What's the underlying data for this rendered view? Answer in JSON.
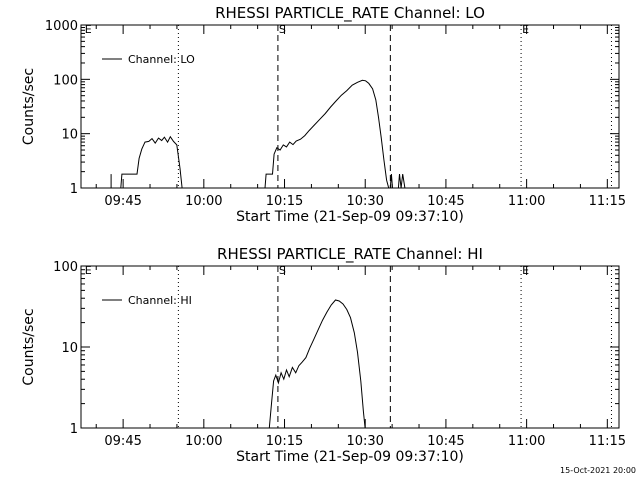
{
  "footer": {
    "timestamp": "15-Oct-2021 20:00"
  },
  "chart_data": [
    {
      "type": "line",
      "title": "RHESSI PARTICLE_RATE Channel: LO",
      "xlabel": "Start Time (21-Sep-09 09:37:10)",
      "ylabel": "Counts/sec",
      "x_unit": "minutes after 09:37:10",
      "xlim": [
        0,
        100
      ],
      "ylim": [
        1,
        1000
      ],
      "yscale": "log",
      "x_ticks": [
        {
          "x": 7.83,
          "label": "09:45"
        },
        {
          "x": 22.83,
          "label": "10:00"
        },
        {
          "x": 37.83,
          "label": "10:15"
        },
        {
          "x": 52.83,
          "label": "10:30"
        },
        {
          "x": 67.83,
          "label": "10:45"
        },
        {
          "x": 82.83,
          "label": "11:00"
        },
        {
          "x": 97.83,
          "label": "11:15"
        }
      ],
      "y_ticks": [
        {
          "y": 1,
          "label": "1"
        },
        {
          "y": 10,
          "label": "10"
        },
        {
          "y": 100,
          "label": "100"
        },
        {
          "y": 1000,
          "label": "1000"
        }
      ],
      "legend": {
        "position": "top-left",
        "label": "Channel: LO"
      },
      "markers": [
        {
          "x": 18.1,
          "style": "dotted",
          "label": ""
        },
        {
          "x": 36.6,
          "style": "dashed",
          "label": "S"
        },
        {
          "x": 57.5,
          "style": "dashed",
          "label": ""
        },
        {
          "x": 81.8,
          "style": "dotted",
          "label": "E"
        },
        {
          "x": 98.6,
          "style": "dotted",
          "label": ""
        }
      ],
      "corner_marks": [
        {
          "x": 0.5,
          "label": "E"
        }
      ],
      "series": [
        {
          "segments": [
            [
              [
                5.6,
                1
              ],
              [
                5.6,
                1.8
              ]
            ],
            [
              [
                7.4,
                1
              ],
              [
                7.6,
                1.8
              ],
              [
                10.4,
                1.8
              ],
              [
                10.8,
                3.5
              ],
              [
                11.3,
                5.2
              ],
              [
                11.9,
                7.0
              ],
              [
                12.6,
                7.2
              ],
              [
                13.2,
                8.1
              ],
              [
                13.8,
                6.7
              ],
              [
                14.4,
                8.3
              ],
              [
                15.0,
                7.5
              ],
              [
                15.5,
                8.6
              ],
              [
                16.1,
                7.0
              ],
              [
                16.6,
                8.8
              ],
              [
                17.2,
                7.2
              ],
              [
                17.8,
                6.2
              ],
              [
                18.4,
                2.3
              ],
              [
                18.8,
                1
              ]
            ],
            [
              [
                34.2,
                1
              ],
              [
                34.4,
                1.8
              ],
              [
                35.6,
                1.8
              ],
              [
                35.9,
                4.2
              ],
              [
                36.4,
                5.5
              ],
              [
                37.0,
                5.0
              ],
              [
                37.6,
                6.2
              ],
              [
                38.2,
                5.7
              ],
              [
                38.8,
                7.0
              ],
              [
                39.4,
                6.3
              ],
              [
                40.0,
                7.3
              ],
              [
                40.8,
                7.9
              ],
              [
                41.6,
                9.2
              ],
              [
                42.4,
                11.4
              ],
              [
                43.4,
                14.5
              ],
              [
                44.4,
                18.5
              ],
              [
                45.4,
                23.5
              ],
              [
                46.4,
                31
              ],
              [
                47.4,
                40
              ],
              [
                48.4,
                51
              ],
              [
                49.4,
                62
              ],
              [
                50.4,
                78
              ],
              [
                51.4,
                88
              ],
              [
                52.3,
                96
              ],
              [
                52.9,
                94
              ],
              [
                53.5,
                84
              ],
              [
                54.2,
                67
              ],
              [
                54.8,
                42
              ],
              [
                55.3,
                20
              ],
              [
                55.8,
                8.5
              ],
              [
                56.3,
                3.3
              ],
              [
                56.8,
                1.4
              ],
              [
                57.2,
                1
              ]
            ],
            [
              [
                57.5,
                1
              ],
              [
                57.7,
                1.8
              ],
              [
                57.9,
                1
              ]
            ],
            [
              [
                59.0,
                1
              ],
              [
                59.2,
                1.8
              ],
              [
                59.5,
                1
              ],
              [
                59.8,
                1.8
              ],
              [
                60.2,
                1
              ]
            ]
          ]
        }
      ]
    },
    {
      "type": "line",
      "title": "RHESSI PARTICLE_RATE Channel: HI",
      "xlabel": "Start Time (21-Sep-09 09:37:10)",
      "ylabel": "Counts/sec",
      "x_unit": "minutes after 09:37:10",
      "xlim": [
        0,
        100
      ],
      "ylim": [
        1,
        100
      ],
      "yscale": "log",
      "x_ticks": [
        {
          "x": 7.83,
          "label": "09:45"
        },
        {
          "x": 22.83,
          "label": "10:00"
        },
        {
          "x": 37.83,
          "label": "10:15"
        },
        {
          "x": 52.83,
          "label": "10:30"
        },
        {
          "x": 67.83,
          "label": "10:45"
        },
        {
          "x": 82.83,
          "label": "11:00"
        },
        {
          "x": 97.83,
          "label": "11:15"
        }
      ],
      "y_ticks": [
        {
          "y": 1,
          "label": "1"
        },
        {
          "y": 10,
          "label": "10"
        },
        {
          "y": 100,
          "label": "100"
        }
      ],
      "legend": {
        "position": "top-left",
        "label": "Channel: HI"
      },
      "markers": [
        {
          "x": 18.1,
          "style": "dotted",
          "label": ""
        },
        {
          "x": 36.6,
          "style": "dashed",
          "label": "S"
        },
        {
          "x": 57.5,
          "style": "dashed",
          "label": ""
        },
        {
          "x": 81.8,
          "style": "dotted",
          "label": "E"
        },
        {
          "x": 98.6,
          "style": "dotted",
          "label": ""
        }
      ],
      "corner_marks": [
        {
          "x": 0.5,
          "label": "E"
        }
      ],
      "series": [
        {
          "segments": [
            [
              [
                35.0,
                1
              ],
              [
                35.4,
                2.0
              ],
              [
                35.8,
                3.8
              ],
              [
                36.2,
                4.5
              ],
              [
                36.7,
                3.6
              ],
              [
                37.2,
                4.8
              ],
              [
                37.7,
                4.0
              ],
              [
                38.2,
                5.2
              ],
              [
                38.7,
                4.3
              ],
              [
                39.3,
                5.6
              ],
              [
                39.9,
                4.8
              ],
              [
                40.5,
                5.9
              ],
              [
                41.1,
                6.5
              ],
              [
                41.8,
                7.4
              ],
              [
                42.5,
                9.6
              ],
              [
                43.3,
                12.6
              ],
              [
                44.1,
                16.5
              ],
              [
                44.9,
                21.5
              ],
              [
                45.7,
                27
              ],
              [
                46.5,
                33
              ],
              [
                47.3,
                38
              ],
              [
                48.0,
                37
              ],
              [
                48.7,
                34
              ],
              [
                49.4,
                29
              ],
              [
                50.1,
                23
              ],
              [
                50.8,
                15
              ],
              [
                51.4,
                8.6
              ],
              [
                52.0,
                3.8
              ],
              [
                52.5,
                1.6
              ],
              [
                52.8,
                1
              ]
            ]
          ]
        }
      ]
    }
  ]
}
